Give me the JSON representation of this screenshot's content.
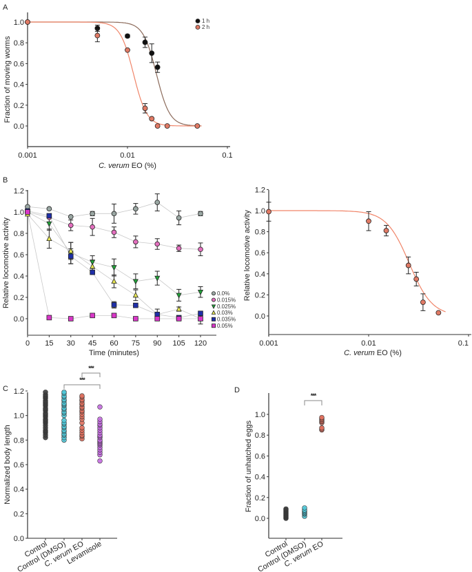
{
  "chart_data": [
    {
      "id": "A",
      "panel_label": "A",
      "type": "scatter",
      "x_scale": "log",
      "xlabel_italic": "C. verum",
      "xlabel_rest": " EO (%)",
      "ylabel": "Fraction of moving worms",
      "xlim": [
        0.001,
        0.1
      ],
      "ylim": [
        -0.2,
        1.2
      ],
      "xticks": [
        0.001,
        0.01,
        0.1
      ],
      "xtick_labels": [
        "0.001",
        "0.01",
        "0.1"
      ],
      "yticks": [
        0.0,
        0.2,
        0.4,
        0.6,
        0.8,
        1.0
      ],
      "ytick_labels": [
        "0.0",
        "0.2",
        "0.4",
        "0.6",
        "0.8",
        "1.0"
      ],
      "legend_position": "top-right",
      "series": [
        {
          "name": "1 h",
          "color": "#111111",
          "curve_color": "#8b6a5a",
          "fit": {
            "top": 1.0,
            "bottom": 0.0,
            "ec50": 0.0195,
            "hill": 6.5
          },
          "points": [
            {
              "x": 0.001,
              "y": 1.0,
              "err": 0.0
            },
            {
              "x": 0.005,
              "y": 0.94,
              "err": 0.03
            },
            {
              "x": 0.01,
              "y": 0.865,
              "err": 0.015
            },
            {
              "x": 0.015,
              "y": 0.805,
              "err": 0.05
            },
            {
              "x": 0.0175,
              "y": 0.7,
              "err": 0.09
            },
            {
              "x": 0.02,
              "y": 0.565,
              "err": 0.05
            }
          ]
        },
        {
          "name": "2 h",
          "color": "#e07a65",
          "curve_color": "#f08468",
          "fit": {
            "top": 1.0,
            "bottom": 0.0,
            "ec50": 0.0115,
            "hill": 6.5
          },
          "points": [
            {
              "x": 0.001,
              "y": 1.0,
              "err": 0.0
            },
            {
              "x": 0.005,
              "y": 0.87,
              "err": 0.06
            },
            {
              "x": 0.01,
              "y": 0.73,
              "err": 0.0
            },
            {
              "x": 0.015,
              "y": 0.17,
              "err": 0.045
            },
            {
              "x": 0.0175,
              "y": 0.07,
              "err": 0.0
            },
            {
              "x": 0.02,
              "y": 0.0,
              "err": 0.0
            },
            {
              "x": 0.025,
              "y": 0.0,
              "err": 0.0
            },
            {
              "x": 0.05,
              "y": 0.0,
              "err": 0.0
            }
          ]
        }
      ]
    },
    {
      "id": "B-time",
      "panel_label": "B",
      "type": "line",
      "xlabel": "Time (minutes)",
      "ylabel": "Relative locomotive activity",
      "xlim": [
        0,
        130
      ],
      "ylim": [
        -0.2,
        1.2
      ],
      "xticks": [
        0,
        15,
        30,
        45,
        60,
        75,
        90,
        105,
        120
      ],
      "xtick_labels": [
        "0",
        "15",
        "30",
        "45",
        "60",
        "75",
        "90",
        "105",
        "120"
      ],
      "yticks": [
        0.0,
        0.2,
        0.4,
        0.6,
        0.8,
        1.0,
        1.2
      ],
      "ytick_labels": [
        "0.0",
        "0.2",
        "0.4",
        "0.6",
        "0.8",
        "1.0",
        "1.2"
      ],
      "legend_position": "right",
      "x": [
        0,
        15,
        30,
        45,
        60,
        75,
        90,
        105,
        120
      ],
      "series": [
        {
          "name": "0.0%",
          "marker": "circle",
          "color": "#9aa7a3",
          "values": [
            1.05,
            1.03,
            0.955,
            0.985,
            0.985,
            1.03,
            1.09,
            0.945,
            0.985
          ],
          "err": [
            0.0,
            0.0,
            0.0,
            0.02,
            0.09,
            0.05,
            0.08,
            0.065,
            0.02
          ]
        },
        {
          "name": "0.015%",
          "marker": "circle",
          "color": "#e36fbe",
          "values": [
            1.0,
            0.95,
            0.875,
            0.86,
            0.81,
            0.72,
            0.7,
            0.66,
            0.65
          ],
          "err": [
            0.0,
            0.0,
            0.05,
            0.08,
            0.05,
            0.055,
            0.05,
            0.03,
            0.06
          ]
        },
        {
          "name": "0.025%",
          "marker": "triangle-down",
          "color": "#22a33a",
          "values": [
            1.0,
            0.89,
            0.615,
            0.53,
            0.48,
            0.35,
            0.38,
            0.22,
            0.25
          ],
          "err": [
            0.0,
            0.06,
            0.1,
            0.06,
            0.08,
            0.07,
            0.065,
            0.055,
            0.05
          ]
        },
        {
          "name": "0.03%",
          "marker": "triangle-up",
          "color": "#eaea55",
          "values": [
            0.98,
            0.75,
            0.635,
            0.49,
            0.35,
            0.22,
            0.04,
            0.09,
            0.0
          ],
          "err": [
            0.0,
            0.09,
            0.08,
            0.06,
            0.06,
            0.05,
            0.0,
            0.02,
            0.0
          ]
        },
        {
          "name": "0.035%",
          "marker": "square",
          "color": "#1f2fa8",
          "values": [
            1.01,
            0.965,
            0.585,
            0.435,
            0.13,
            0.125,
            0.04,
            0.01,
            0.05
          ],
          "err": [
            0.0,
            0.0,
            0.07,
            0.02,
            0.03,
            0.02,
            0.05,
            0.0,
            0.0
          ]
        },
        {
          "name": "0.05%",
          "marker": "square",
          "color": "#d837c8",
          "values": [
            1.0,
            0.01,
            0.0,
            0.03,
            0.03,
            0.0,
            0.0,
            0.0,
            0.0
          ],
          "err": [
            0.0,
            0.0,
            0.0,
            0.0,
            0.0,
            0.0,
            0.0,
            0.0,
            0.05
          ]
        }
      ]
    },
    {
      "id": "B-dose",
      "panel_label": "",
      "type": "scatter",
      "x_scale": "log",
      "xlabel_italic": "C. verum",
      "xlabel_rest": " EO (%)",
      "ylabel": "Relative locomotive activity",
      "xlim": [
        0.001,
        0.1
      ],
      "ylim": [
        -0.2,
        1.2
      ],
      "xticks": [
        0.001,
        0.01,
        0.1
      ],
      "xtick_labels": [
        "0.001",
        "0.01",
        "0.1"
      ],
      "yticks": [
        0.0,
        0.2,
        0.4,
        0.6,
        0.8,
        1.0,
        1.2
      ],
      "ytick_labels": [
        "0.0",
        "0.2",
        "0.4",
        "0.6",
        "0.8",
        "1.0",
        "1.2"
      ],
      "series": [
        {
          "name": "dose-response",
          "color": "#e07a65",
          "curve_color": "#f08468",
          "fit": {
            "top": 1.0,
            "bottom": 0.0,
            "ec50": 0.0255,
            "hill": 3.8
          },
          "points": [
            {
              "x": 0.001,
              "y": 0.99,
              "err": 0.09
            },
            {
              "x": 0.01,
              "y": 0.9,
              "err": 0.09
            },
            {
              "x": 0.015,
              "y": 0.81,
              "err": 0.05
            },
            {
              "x": 0.025,
              "y": 0.48,
              "err": 0.08
            },
            {
              "x": 0.03,
              "y": 0.35,
              "err": 0.065
            },
            {
              "x": 0.035,
              "y": 0.13,
              "err": 0.08
            },
            {
              "x": 0.05,
              "y": 0.03,
              "err": 0.0
            }
          ]
        }
      ]
    },
    {
      "id": "C",
      "panel_label": "C",
      "type": "scatter",
      "ylabel": "Normalized body length",
      "ylim": [
        0.0,
        1.2
      ],
      "yticks": [
        0.0,
        0.2,
        0.4,
        0.6,
        0.8,
        1.0,
        1.2
      ],
      "ytick_labels": [
        "0.0",
        "0.2",
        "0.4",
        "0.6",
        "0.8",
        "1.0",
        "1.2"
      ],
      "categories": [
        {
          "label": "Control",
          "italic": "",
          "color": "#3d3d3d",
          "values": [
            0.82,
            0.84,
            0.86,
            0.87,
            0.88,
            0.9,
            0.92,
            0.94,
            0.95,
            0.96,
            0.97,
            0.99,
            1.0,
            1.01,
            1.02,
            1.04,
            1.05,
            1.06,
            1.08,
            1.09,
            1.1,
            1.11,
            1.12,
            1.14,
            1.15,
            1.16,
            1.17,
            1.19
          ]
        },
        {
          "label": "Control (DMSO)",
          "italic": "",
          "color": "#4ec8d8",
          "values": [
            0.8,
            0.82,
            0.84,
            0.85,
            0.87,
            0.88,
            0.9,
            0.91,
            0.93,
            0.94,
            0.96,
            1.0,
            1.02,
            1.03,
            1.05,
            1.06,
            1.08,
            1.09,
            1.1,
            1.12,
            1.13,
            1.15,
            1.16,
            1.18,
            1.19
          ]
        },
        {
          "label": " EO",
          "italic": "C. verum",
          "color": "#e0705e",
          "values": [
            0.81,
            0.83,
            0.84,
            0.86,
            0.88,
            0.9,
            0.94,
            0.97,
            0.99,
            1.01,
            1.03,
            1.04,
            1.06,
            1.07,
            1.09,
            1.1,
            1.12,
            1.13,
            1.15,
            1.16
          ]
        },
        {
          "label": "Levamisole",
          "italic": "",
          "color": "#c46be0",
          "values": [
            0.63,
            0.68,
            0.7,
            0.72,
            0.74,
            0.76,
            0.77,
            0.78,
            0.79,
            0.8,
            0.82,
            0.83,
            0.84,
            0.86,
            0.88,
            0.9,
            0.92,
            0.93,
            0.95,
            0.97,
            1.07
          ]
        }
      ],
      "significance": [
        {
          "from": 2,
          "to": 3,
          "label": "***"
        },
        {
          "from": 1,
          "to": 3,
          "label": "***"
        }
      ]
    },
    {
      "id": "D",
      "panel_label": "D",
      "type": "scatter",
      "ylabel": "Fraction of unhatched eggs",
      "ylim": [
        -0.2,
        1.2
      ],
      "yticks": [
        0.0,
        0.2,
        0.4,
        0.6,
        0.8,
        1.0
      ],
      "ytick_labels": [
        "0.0",
        "0.2",
        "0.4",
        "0.6",
        "0.8",
        "1.0"
      ],
      "categories": [
        {
          "label": "Control",
          "italic": "",
          "color": "#3d3d3d",
          "values": [
            0.0,
            0.01,
            0.02,
            0.03,
            0.04,
            0.05,
            0.06,
            0.07,
            0.08,
            0.09
          ]
        },
        {
          "label": "Control (DMSO)",
          "italic": "",
          "color": "#4ec8d8",
          "values": [
            0.02,
            0.04,
            0.05,
            0.06,
            0.07,
            0.08,
            0.1
          ]
        },
        {
          "label": " EO",
          "italic": "C. verum",
          "color": "#e0705e",
          "values": [
            0.85,
            0.86,
            0.87,
            0.92,
            0.93,
            0.94,
            0.95,
            0.96,
            0.97
          ]
        }
      ],
      "significance": [
        {
          "from": 1,
          "to": 2,
          "label": "***"
        }
      ]
    }
  ]
}
